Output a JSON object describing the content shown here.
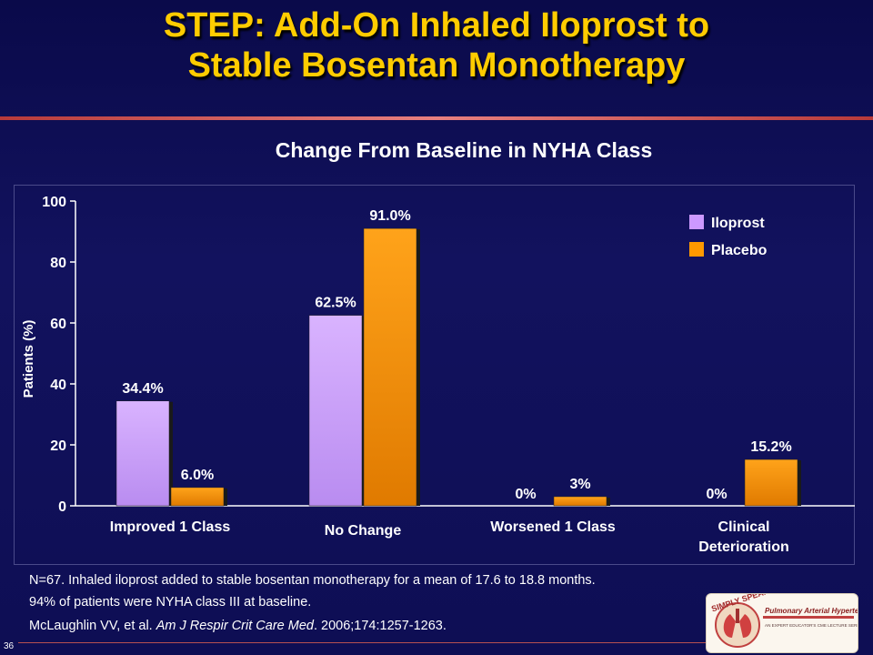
{
  "slide": {
    "title_line1": "STEP: Add-On Inhaled Iloprost to",
    "title_line2": "Stable Bosentan Monotherapy",
    "number": "36",
    "footnote_line1": "N=67.  Inhaled iloprost added to stable bosentan monotherapy for a mean of 17.6 to 18.8 months.",
    "footnote_line2": "94% of patients were NYHA class III at baseline.",
    "citation_authors": "McLaughlin VV, et al. ",
    "citation_journal": "Am J Respir Crit Care Med",
    "citation_rest": ". 2006;174:1257-1263.",
    "logo_text_1": "SIMPLY SPEAKING:",
    "logo_text_2": "Pulmonary Arterial Hypertension",
    "logo_text_3": "AN EXPERT EDUCATOR'S CME LECTURE SERIES"
  },
  "chart_data": {
    "type": "bar",
    "title": "Change From Baseline in NYHA Class",
    "ylabel": "Patients (%)",
    "xlabel": "",
    "ylim": [
      0,
      100
    ],
    "yticks": [
      0,
      20,
      40,
      60,
      80,
      100
    ],
    "grid": false,
    "legend_position": "top-right",
    "categories": [
      "Improved 1 Class",
      "No Change",
      "Worsened 1 Class",
      "Clinical Deterioration"
    ],
    "category_lines": [
      [
        "Improved 1 Class"
      ],
      [
        "No Change"
      ],
      [
        "Worsened 1 Class"
      ],
      [
        "Clinical",
        "Deterioration"
      ]
    ],
    "series": [
      {
        "name": "Iloprost",
        "color": "#cc99ff",
        "values": [
          34.4,
          62.5,
          0,
          0
        ],
        "labels": [
          "34.4%",
          "62.5%",
          "0%",
          "0%"
        ]
      },
      {
        "name": "Placebo",
        "color": "#ff9900",
        "values": [
          6.0,
          91.0,
          3,
          15.2
        ],
        "labels": [
          "6.0%",
          "91.0%",
          "3%",
          "15.2%"
        ]
      }
    ]
  }
}
